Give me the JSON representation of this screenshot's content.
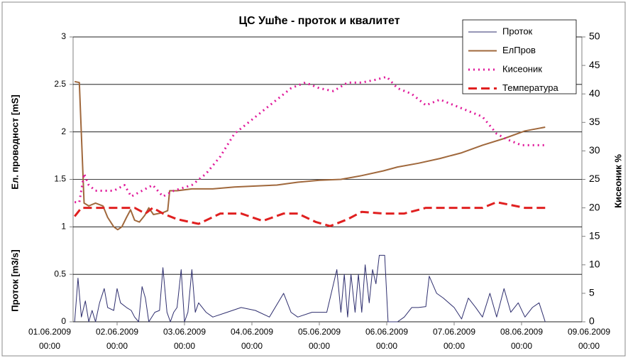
{
  "chart_data": {
    "type": "line",
    "title": "ЦС Ушће - проток и квалитет",
    "y_label_flow": "Проток [m3/s]",
    "y_label_cond": "Ел. проводност [mS]",
    "y2_label": "Кисеоник %",
    "xlim": [
      0,
      8
    ],
    "xticks": [
      {
        "value": 0,
        "label": "01.06.2009 00:00"
      },
      {
        "value": 1,
        "label": "02.06.2009 00:00"
      },
      {
        "value": 2,
        "label": "03.06.2009 00:00"
      },
      {
        "value": 3,
        "label": "04.06.2009 00:00"
      },
      {
        "value": 4,
        "label": "05.06.2009 00:00"
      },
      {
        "value": 5,
        "label": "06.06.2009 00:00"
      },
      {
        "value": 6,
        "label": "07.06.2009 00:00"
      },
      {
        "value": 7,
        "label": "08.06.2009 00:00"
      },
      {
        "value": 8,
        "label": "09.06.2009 00:00"
      }
    ],
    "ylim": [
      0,
      3
    ],
    "yticks": [
      0,
      0.5,
      1,
      1.5,
      2,
      2.5,
      3
    ],
    "y2lim": [
      0,
      50
    ],
    "y2ticks": [
      0,
      5,
      10,
      15,
      20,
      25,
      30,
      35,
      40,
      45,
      50
    ],
    "grid": true,
    "series": [
      {
        "name": "Проток",
        "color": "#2e2e6e",
        "line_style": "solid",
        "width": 1,
        "x": [
          0.37,
          0.42,
          0.47,
          0.53,
          0.58,
          0.63,
          0.68,
          0.74,
          0.81,
          0.86,
          0.95,
          1.0,
          1.05,
          1.14,
          1.21,
          1.26,
          1.32,
          1.37,
          1.42,
          1.47,
          1.56,
          1.63,
          1.68,
          1.74,
          1.79,
          1.84,
          1.89,
          1.95,
          2.0,
          2.05,
          2.11,
          2.16,
          2.21,
          2.32,
          2.42,
          2.63,
          2.84,
          3.05,
          3.26,
          3.47,
          3.58,
          3.68,
          3.89,
          4.11,
          4.26,
          4.32,
          4.37,
          4.42,
          4.47,
          4.53,
          4.58,
          4.63,
          4.68,
          4.74,
          4.79,
          4.84,
          4.89,
          4.97,
          5.02,
          5.16,
          5.26,
          5.37,
          5.47,
          5.58,
          5.63,
          5.74,
          5.84,
          6.0,
          6.11,
          6.21,
          6.32,
          6.42,
          6.53,
          6.63,
          6.74,
          6.84,
          6.95,
          7.05,
          7.16,
          7.26,
          7.35
        ],
        "values": [
          0,
          0.46,
          0.05,
          0.22,
          0,
          0.12,
          0,
          0.2,
          0.35,
          0.15,
          0.12,
          0.35,
          0.2,
          0.15,
          0.12,
          0.05,
          0,
          0.37,
          0.25,
          0,
          0.1,
          0.12,
          0.57,
          0.1,
          0,
          0.1,
          0.15,
          0.55,
          0,
          0.1,
          0.55,
          0.1,
          0.2,
          0.1,
          0.05,
          0.1,
          0.15,
          0.12,
          0.05,
          0.3,
          0.1,
          0.05,
          0.1,
          0.1,
          0.55,
          0.1,
          0.5,
          0.05,
          0.5,
          0.1,
          0.5,
          0.1,
          0.6,
          0.2,
          0.55,
          0.4,
          0.7,
          0.7,
          0,
          0,
          0.05,
          0.15,
          0.15,
          0.16,
          0.48,
          0.3,
          0.25,
          0.15,
          0.03,
          0.25,
          0.15,
          0.05,
          0.3,
          0.05,
          0.35,
          0.1,
          0.2,
          0.05,
          0.15,
          0.2,
          0
        ]
      },
      {
        "name": "ЕлПров",
        "color": "#a0683c",
        "line_style": "solid",
        "width": 2,
        "x": [
          0.37,
          0.44,
          0.51,
          0.58,
          0.68,
          0.79,
          0.86,
          0.95,
          1.01,
          1.07,
          1.14,
          1.2,
          1.26,
          1.33,
          1.41,
          1.47,
          1.54,
          1.68,
          1.75,
          1.78,
          1.89,
          2.11,
          2.42,
          2.74,
          3.05,
          3.37,
          3.68,
          4.0,
          4.32,
          4.63,
          4.95,
          5.16,
          5.47,
          5.79,
          6.11,
          6.42,
          6.74,
          7.05,
          7.35
        ],
        "values": [
          2.53,
          2.52,
          1.25,
          1.22,
          1.25,
          1.22,
          1.1,
          1.0,
          0.97,
          1.0,
          1.1,
          1.18,
          1.07,
          1.05,
          1.12,
          1.2,
          1.13,
          1.15,
          1.17,
          1.38,
          1.38,
          1.4,
          1.4,
          1.42,
          1.43,
          1.44,
          1.47,
          1.49,
          1.5,
          1.54,
          1.59,
          1.63,
          1.67,
          1.72,
          1.78,
          1.86,
          1.93,
          2.01,
          2.05
        ]
      },
      {
        "name": "Кисеоник",
        "color": "#e0189a",
        "line_style": "dotted",
        "width": 3,
        "axis": "y2",
        "x": [
          0.37,
          0.44,
          0.51,
          0.58,
          0.68,
          0.95,
          1.11,
          1.21,
          1.37,
          1.53,
          1.68,
          1.84,
          2.11,
          2.32,
          2.53,
          2.74,
          2.95,
          3.16,
          3.37,
          3.58,
          3.79,
          4.0,
          4.21,
          4.42,
          4.63,
          4.84,
          5.0,
          5.16,
          5.37,
          5.58,
          5.79,
          6.0,
          6.21,
          6.42,
          6.63,
          6.79,
          7.0,
          7.35
        ],
        "values": [
          21,
          21,
          26,
          24,
          23,
          23,
          24,
          22,
          23,
          24,
          22,
          23,
          24,
          26,
          29,
          33,
          35,
          37,
          39,
          41,
          42,
          41,
          40.5,
          42,
          42,
          42.5,
          43,
          41,
          40,
          38,
          39,
          38,
          37,
          36,
          33,
          32,
          31,
          31
        ]
      },
      {
        "name": "Температура",
        "color": "#e02020",
        "line_style": "dashed",
        "width": 3,
        "axis": "y2",
        "x": [
          0.37,
          0.47,
          0.74,
          1.26,
          1.42,
          1.53,
          1.68,
          1.89,
          2.21,
          2.53,
          2.84,
          3.16,
          3.47,
          3.68,
          3.95,
          4.16,
          4.42,
          4.63,
          4.95,
          5.26,
          5.58,
          6.0,
          6.42,
          6.63,
          6.84,
          7.05,
          7.35
        ],
        "values": [
          18.5,
          20,
          20,
          20,
          19,
          20,
          19,
          18,
          17.2,
          19,
          19,
          17.7,
          19,
          19,
          17.5,
          16.8,
          18,
          19.3,
          19,
          19,
          20,
          20,
          20,
          21,
          20.5,
          20,
          20
        ]
      }
    ]
  }
}
